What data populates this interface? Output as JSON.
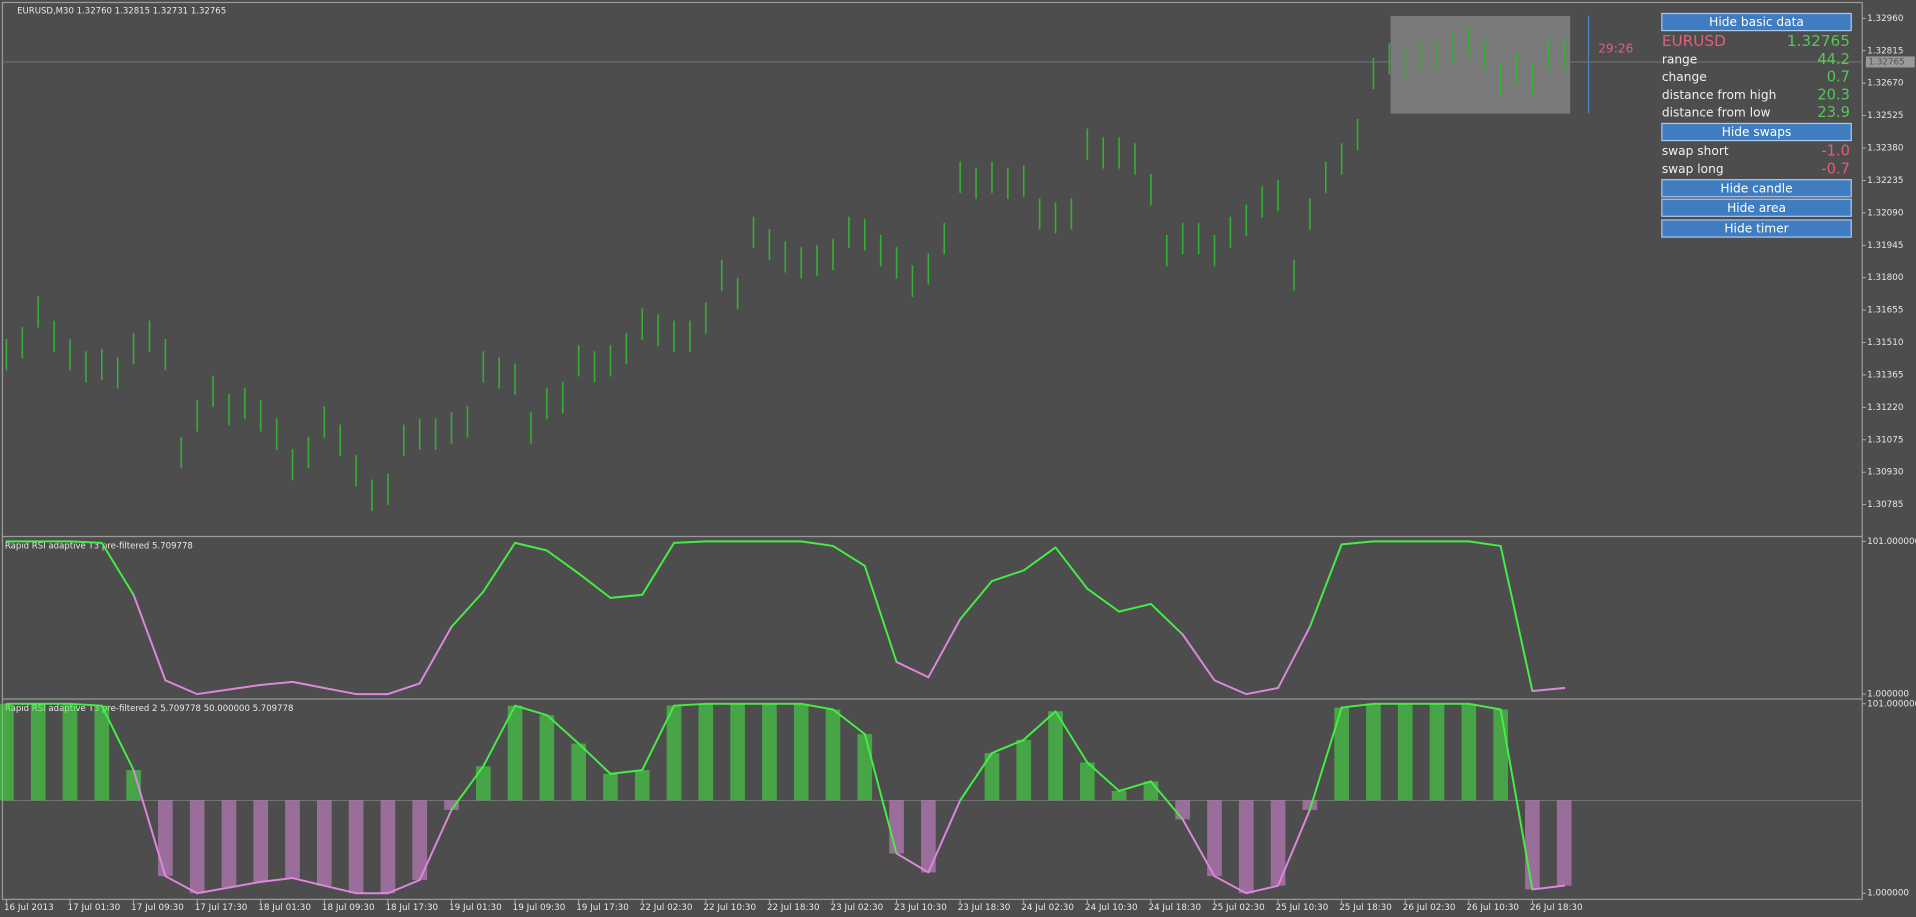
{
  "chart_data": [
    {
      "type": "hilo",
      "title": "EURUSD,M30  1.32760 1.32815 1.32731 1.32765",
      "color": "#34b034",
      "x": [
        0,
        4,
        8,
        12,
        16,
        20,
        24,
        28,
        32,
        36,
        40,
        44,
        48,
        52,
        56,
        60,
        64,
        68,
        72,
        76,
        80,
        84,
        88,
        92,
        96,
        100,
        104,
        108,
        112,
        116,
        120,
        124,
        128,
        132,
        136,
        140,
        144,
        148,
        152,
        156,
        160,
        164,
        168,
        172,
        176,
        180,
        184,
        188,
        192,
        196,
        200,
        204,
        208,
        212,
        216,
        220,
        224,
        228,
        232,
        236,
        240,
        244,
        248,
        252,
        256,
        260,
        264,
        268,
        272,
        276,
        280,
        284,
        288,
        292,
        296,
        300,
        304,
        308,
        312,
        316,
        320,
        324,
        328,
        332,
        336,
        340,
        344,
        348,
        352,
        356,
        360,
        364,
        368,
        372,
        376,
        380,
        384,
        388,
        392
      ],
      "highs": [
        1.31526,
        1.3158,
        1.31717,
        1.31608,
        1.31526,
        1.31471,
        1.31482,
        1.31444,
        1.31553,
        1.31608,
        1.31526,
        1.31088,
        1.31252,
        1.31362,
        1.3128,
        1.31307,
        1.31252,
        1.3117,
        1.31033,
        1.31088,
        1.31225,
        1.31143,
        1.31006,
        1.30897,
        1.30924,
        1.31143,
        1.3117,
        1.3117,
        1.31198,
        1.31225,
        1.31471,
        1.31444,
        1.31416,
        1.31198,
        1.31307,
        1.31334,
        1.31498,
        1.31471,
        1.31498,
        1.31553,
        1.31662,
        1.31635,
        1.31608,
        1.31608,
        1.3169,
        1.31881,
        1.31799,
        1.32073,
        1.32018,
        1.31963,
        1.31936,
        1.31947,
        1.31974,
        1.32073,
        1.32062,
        1.31991,
        1.31936,
        1.31854,
        1.31909,
        1.32045,
        1.32319,
        1.32292,
        1.32319,
        1.32292,
        1.32302,
        1.32155,
        1.32138,
        1.32155,
        1.32467,
        1.32428,
        1.32428,
        1.32401,
        1.32264,
        1.31991,
        1.32045,
        1.32045,
        1.31991,
        1.32073,
        1.32127,
        1.32209,
        1.32237,
        1.31881,
        1.32155,
        1.32319,
        1.32401,
        1.3251,
        1.32784,
        1.32849,
        1.32828,
        1.32866,
        1.32866,
        1.32893,
        1.32921,
        1.32866,
        1.32756,
        1.32811,
        1.32756,
        1.32866,
        1.32866
      ],
      "lows": [
        1.31386,
        1.3144,
        1.31577,
        1.31468,
        1.31386,
        1.31331,
        1.31342,
        1.31304,
        1.31413,
        1.31468,
        1.31386,
        1.30948,
        1.31112,
        1.31222,
        1.3114,
        1.31167,
        1.31112,
        1.3103,
        1.30893,
        1.30948,
        1.31085,
        1.31003,
        1.30866,
        1.30757,
        1.30784,
        1.31003,
        1.3103,
        1.3103,
        1.31058,
        1.31085,
        1.31331,
        1.31304,
        1.31276,
        1.31058,
        1.31167,
        1.31194,
        1.31358,
        1.31331,
        1.31358,
        1.31413,
        1.31522,
        1.31495,
        1.31468,
        1.31468,
        1.3155,
        1.31741,
        1.31659,
        1.31933,
        1.31878,
        1.31823,
        1.31796,
        1.31807,
        1.31834,
        1.31933,
        1.31922,
        1.31851,
        1.31796,
        1.31714,
        1.31769,
        1.31905,
        1.32179,
        1.32152,
        1.32179,
        1.32152,
        1.32162,
        1.32015,
        1.31998,
        1.32015,
        1.32327,
        1.32288,
        1.32288,
        1.32261,
        1.32124,
        1.31851,
        1.31905,
        1.31905,
        1.31851,
        1.31933,
        1.31987,
        1.32069,
        1.32097,
        1.31741,
        1.32015,
        1.32179,
        1.32261,
        1.3237,
        1.32644,
        1.32709,
        1.32688,
        1.32726,
        1.32726,
        1.32753,
        1.32781,
        1.32726,
        1.32616,
        1.32671,
        1.32616,
        1.32726,
        1.32726
      ],
      "xlim": [
        -1,
        467
      ],
      "ylim": [
        1.30648,
        1.33031
      ],
      "yticks": [
        {
          "value": 1.3296,
          "label": "1.32960"
        },
        {
          "value": 1.32815,
          "label": "1.32815"
        },
        {
          "value": 1.3267,
          "label": "1.32670"
        },
        {
          "value": 1.32525,
          "label": "1.32525"
        },
        {
          "value": 1.3238,
          "label": "1.32380"
        },
        {
          "value": 1.32235,
          "label": "1.32235"
        },
        {
          "value": 1.3209,
          "label": "1.32090"
        },
        {
          "value": 1.31945,
          "label": "1.31945"
        },
        {
          "value": 1.318,
          "label": "1.31800"
        },
        {
          "value": 1.31655,
          "label": "1.31655"
        },
        {
          "value": 1.3151,
          "label": "1.31510"
        },
        {
          "value": 1.31365,
          "label": "1.31365"
        },
        {
          "value": 1.3122,
          "label": "1.31220"
        },
        {
          "value": 1.31075,
          "label": "1.31075"
        },
        {
          "value": 1.3093,
          "label": "1.30930"
        },
        {
          "value": 1.30785,
          "label": "1.30785"
        }
      ],
      "current_price": {
        "value": 1.32765,
        "label": "1.32765"
      }
    },
    {
      "type": "line",
      "title": "Rapid RSI adaptive T3 pre-filtered 5.709778",
      "up_color": "#44ee44",
      "down_color": "#dd88dd",
      "x": [
        0,
        8,
        16,
        24,
        32,
        40,
        48,
        56,
        64,
        72,
        80,
        88,
        96,
        104,
        112,
        120,
        128,
        136,
        144,
        152,
        160,
        168,
        176,
        184,
        192,
        200,
        208,
        216,
        224,
        232,
        240,
        248,
        256,
        264,
        272,
        280,
        288,
        296,
        304,
        312,
        320,
        328,
        336,
        344,
        352,
        360,
        368,
        376,
        384,
        392
      ],
      "values": [
        101,
        101,
        101,
        100,
        66,
        10,
        1,
        4,
        7,
        9,
        5,
        1,
        1,
        8,
        45,
        68,
        100,
        95,
        80,
        64,
        66,
        100,
        101,
        101,
        101,
        101,
        98,
        85,
        22,
        12,
        50,
        75,
        82,
        97,
        70,
        55,
        60,
        40,
        10,
        1,
        5,
        45,
        99,
        101,
        101,
        101,
        101,
        98,
        3,
        5
      ],
      "xlim": [
        -1,
        467
      ],
      "ylim": [
        -0.6,
        103.4
      ],
      "yticks": [
        {
          "value": 101,
          "label": "101.000000"
        },
        {
          "value": 1,
          "label": "1.000000"
        }
      ]
    },
    {
      "type": "bar",
      "title": "Rapid RSI adaptive T3 pre-filtered 2 5.709778 50.000000 5.709778",
      "up_color": "#44ee44",
      "down_color": "#dd88dd",
      "level": 50,
      "x": [
        0,
        8,
        16,
        24,
        32,
        40,
        48,
        56,
        64,
        72,
        80,
        88,
        96,
        104,
        112,
        120,
        128,
        136,
        144,
        152,
        160,
        168,
        176,
        184,
        192,
        200,
        208,
        216,
        224,
        232,
        240,
        248,
        256,
        264,
        272,
        280,
        288,
        296,
        304,
        312,
        320,
        328,
        336,
        344,
        352,
        360,
        368,
        376,
        384,
        392
      ],
      "values": [
        101,
        101,
        101,
        100,
        66,
        10,
        1,
        4,
        7,
        9,
        5,
        1,
        1,
        8,
        45,
        68,
        100,
        95,
        80,
        64,
        66,
        100,
        101,
        101,
        101,
        101,
        98,
        85,
        22,
        12,
        50,
        75,
        82,
        97,
        70,
        55,
        60,
        40,
        10,
        1,
        5,
        45,
        99,
        101,
        101,
        101,
        101,
        98,
        3,
        5
      ],
      "xlim": [
        -1,
        467
      ],
      "ylim": [
        -1.6,
        102.9
      ],
      "yticks": [
        {
          "value": 101,
          "label": "101.000000"
        },
        {
          "value": 1,
          "label": "1.000000"
        }
      ],
      "xticks": [
        {
          "value": 0,
          "label": "16 Jul 2013"
        },
        {
          "value": 16,
          "label": "17 Jul 01:30"
        },
        {
          "value": 32,
          "label": "17 Jul 09:30"
        },
        {
          "value": 48,
          "label": "17 Jul 17:30"
        },
        {
          "value": 64,
          "label": "18 Jul 01:30"
        },
        {
          "value": 80,
          "label": "18 Jul 09:30"
        },
        {
          "value": 96,
          "label": "18 Jul 17:30"
        },
        {
          "value": 112,
          "label": "19 Jul 01:30"
        },
        {
          "value": 128,
          "label": "19 Jul 09:30"
        },
        {
          "value": 144,
          "label": "19 Jul 17:30"
        },
        {
          "value": 160,
          "label": "22 Jul 02:30"
        },
        {
          "value": 176,
          "label": "22 Jul 10:30"
        },
        {
          "value": 192,
          "label": "22 Jul 18:30"
        },
        {
          "value": 208,
          "label": "23 Jul 02:30"
        },
        {
          "value": 224,
          "label": "23 Jul 10:30"
        },
        {
          "value": 240,
          "label": "23 Jul 18:30"
        },
        {
          "value": 256,
          "label": "24 Jul 02:30"
        },
        {
          "value": 272,
          "label": "24 Jul 10:30"
        },
        {
          "value": 288,
          "label": "24 Jul 18:30"
        },
        {
          "value": 304,
          "label": "25 Jul 02:30"
        },
        {
          "value": 320,
          "label": "25 Jul 10:30"
        },
        {
          "value": 336,
          "label": "25 Jul 18:30"
        },
        {
          "value": 352,
          "label": "26 Jul 02:30"
        },
        {
          "value": 368,
          "label": "26 Jul 10:30"
        },
        {
          "value": 384,
          "label": "26 Jul 18:30"
        }
      ]
    }
  ],
  "timer": "29:26",
  "info_panel": {
    "buttons": [
      "Hide basic data",
      "Hide swaps",
      "Hide candle",
      "Hide area",
      "Hide timer"
    ],
    "symbol": "EURUSD",
    "price": "1.32765",
    "rows": [
      {
        "label": "range",
        "value": "44.2"
      },
      {
        "label": "change",
        "value": "0.7"
      },
      {
        "label": "distance from high",
        "value": "20.3"
      },
      {
        "label": "distance from low",
        "value": "23.9"
      }
    ],
    "swap_rows": [
      {
        "label": "swap short",
        "value": "-1.0"
      },
      {
        "label": "swap long",
        "value": "-0.7"
      }
    ]
  }
}
